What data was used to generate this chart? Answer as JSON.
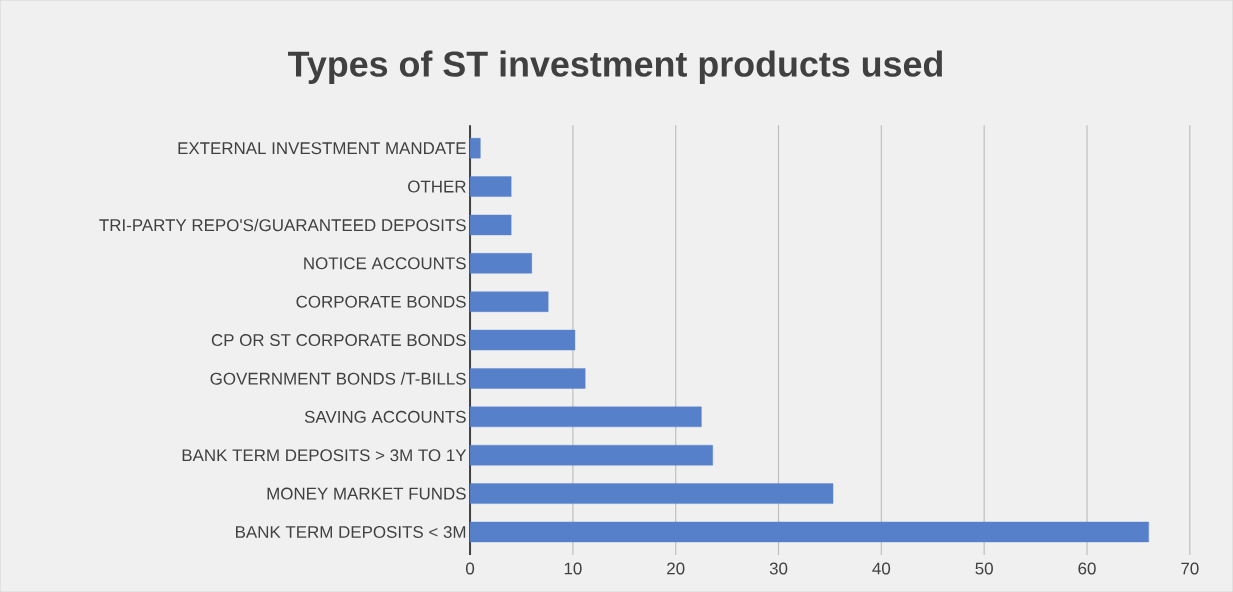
{
  "chart_data": {
    "type": "bar",
    "orientation": "horizontal",
    "title": "Types of ST investment products used",
    "categories": [
      "EXTERNAL INVESTMENT MANDATE",
      "OTHER",
      "TRI-PARTY REPO'S/GUARANTEED DEPOSITS",
      "NOTICE ACCOUNTS",
      "CORPORATE BONDS",
      "CP OR ST CORPORATE BONDS",
      "GOVERNMENT BONDS /T-BILLS",
      "SAVING ACCOUNTS",
      "BANK TERM DEPOSITS > 3M TO 1Y",
      "MONEY MARKET FUNDS",
      "BANK TERM DEPOSITS < 3M"
    ],
    "values": [
      1,
      4,
      4,
      6,
      7.6,
      10.2,
      11.2,
      22.5,
      23.6,
      35.3,
      66
    ],
    "color": "#5780ca",
    "xlim": [
      0,
      70
    ],
    "xticks": [
      0,
      10,
      20,
      30,
      40,
      50,
      60,
      70
    ],
    "grid": "x"
  }
}
